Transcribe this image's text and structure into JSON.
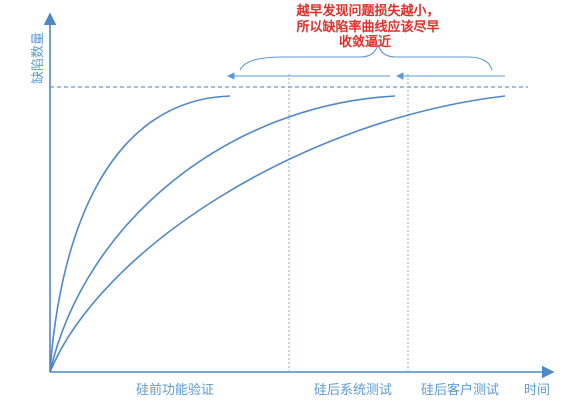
{
  "axes": {
    "y_label": "缺陷数量",
    "x_label": "时间"
  },
  "phases": [
    {
      "label": "硅前功能验证"
    },
    {
      "label": "硅后系统测试"
    },
    {
      "label": "硅后客户测试"
    }
  ],
  "annotation": {
    "lines": [
      "越早发现问题损失越小，",
      "所以缺陷率曲线应该尽早",
      "收敛逼近"
    ]
  },
  "colors": {
    "line": "#4f88c6",
    "label": "#5b9bd5",
    "note": "#e0302a"
  }
}
